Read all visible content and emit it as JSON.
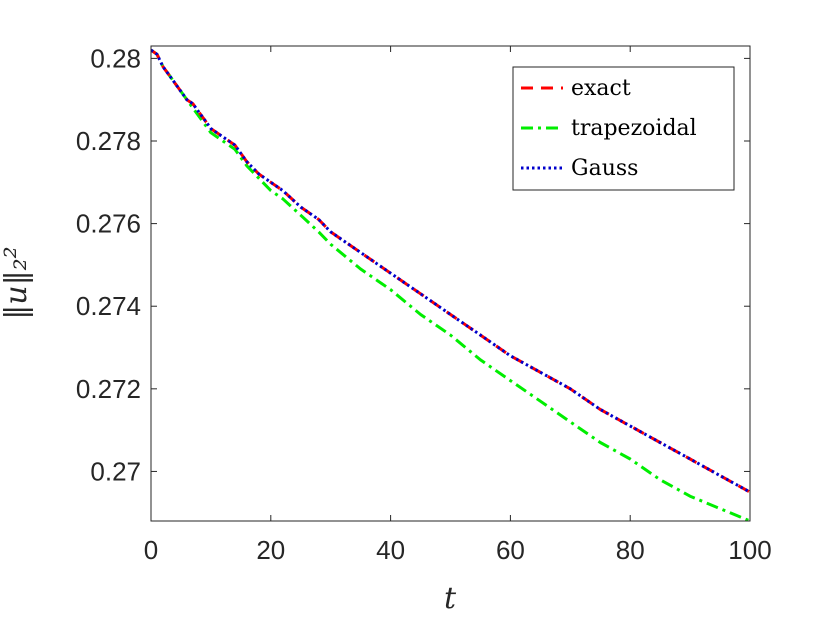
{
  "chart_data": {
    "type": "line",
    "title": "",
    "xlabel": "t",
    "ylabel": "‖u‖₂²",
    "xlim": [
      0,
      100
    ],
    "ylim": [
      0.2688,
      0.2803
    ],
    "xticks": [
      0,
      20,
      40,
      60,
      80,
      100
    ],
    "xtick_labels": [
      "0",
      "20",
      "40",
      "60",
      "80",
      "100"
    ],
    "yticks": [
      0.27,
      0.272,
      0.274,
      0.276,
      0.278,
      0.28
    ],
    "ytick_labels": [
      "0.27",
      "0.272",
      "0.274",
      "0.276",
      "0.278",
      "0.28"
    ],
    "grid": false,
    "legend_position": "top-right",
    "series": [
      {
        "name": "exact",
        "color": "#ff0000",
        "style": "dashed",
        "x": [
          0,
          1,
          2,
          3,
          4,
          5,
          6,
          7,
          8,
          9,
          10,
          12,
          14,
          16,
          18,
          20,
          22,
          25,
          28,
          30,
          35,
          40,
          45,
          50,
          55,
          60,
          65,
          70,
          75,
          80,
          85,
          90,
          95,
          100
        ],
        "y": [
          0.2802,
          0.2801,
          0.2798,
          0.2796,
          0.2794,
          0.2792,
          0.279,
          0.2789,
          0.2787,
          0.2785,
          0.2783,
          0.2781,
          0.2779,
          0.2775,
          0.2772,
          0.277,
          0.2768,
          0.2764,
          0.2761,
          0.2758,
          0.2753,
          0.2748,
          0.2743,
          0.2738,
          0.2733,
          0.2728,
          0.2724,
          0.272,
          0.2715,
          0.2711,
          0.2707,
          0.2703,
          0.2699,
          0.2695
        ]
      },
      {
        "name": "trapezoidal",
        "color": "#00ee00",
        "style": "dashdot",
        "x": [
          0,
          1,
          2,
          3,
          4,
          5,
          6,
          7,
          8,
          9,
          10,
          12,
          14,
          16,
          18,
          20,
          22,
          25,
          28,
          30,
          35,
          40,
          45,
          50,
          55,
          60,
          65,
          70,
          75,
          80,
          85,
          90,
          95,
          100
        ],
        "y": [
          0.2802,
          0.2801,
          0.2798,
          0.2796,
          0.2794,
          0.2792,
          0.279,
          0.2788,
          0.2786,
          0.2784,
          0.2782,
          0.278,
          0.2778,
          0.2774,
          0.2771,
          0.2768,
          0.2766,
          0.2762,
          0.2758,
          0.2755,
          0.2749,
          0.2744,
          0.2738,
          0.2733,
          0.2727,
          0.2722,
          0.2717,
          0.2712,
          0.2707,
          0.2703,
          0.2698,
          0.2694,
          0.2691,
          0.2688
        ]
      },
      {
        "name": "Gauss",
        "color": "#0000cc",
        "style": "dotted",
        "x": [
          0,
          1,
          2,
          3,
          4,
          5,
          6,
          7,
          8,
          9,
          10,
          12,
          14,
          16,
          18,
          20,
          22,
          25,
          28,
          30,
          35,
          40,
          45,
          50,
          55,
          60,
          65,
          70,
          75,
          80,
          85,
          90,
          95,
          100
        ],
        "y": [
          0.2802,
          0.2801,
          0.2798,
          0.2796,
          0.2794,
          0.2792,
          0.279,
          0.2789,
          0.2787,
          0.2785,
          0.2783,
          0.2781,
          0.2779,
          0.2775,
          0.2772,
          0.277,
          0.2768,
          0.2764,
          0.2761,
          0.2758,
          0.2753,
          0.2748,
          0.2743,
          0.2738,
          0.2733,
          0.2728,
          0.2724,
          0.272,
          0.2715,
          0.2711,
          0.2707,
          0.2703,
          0.2699,
          0.2695
        ]
      }
    ]
  }
}
